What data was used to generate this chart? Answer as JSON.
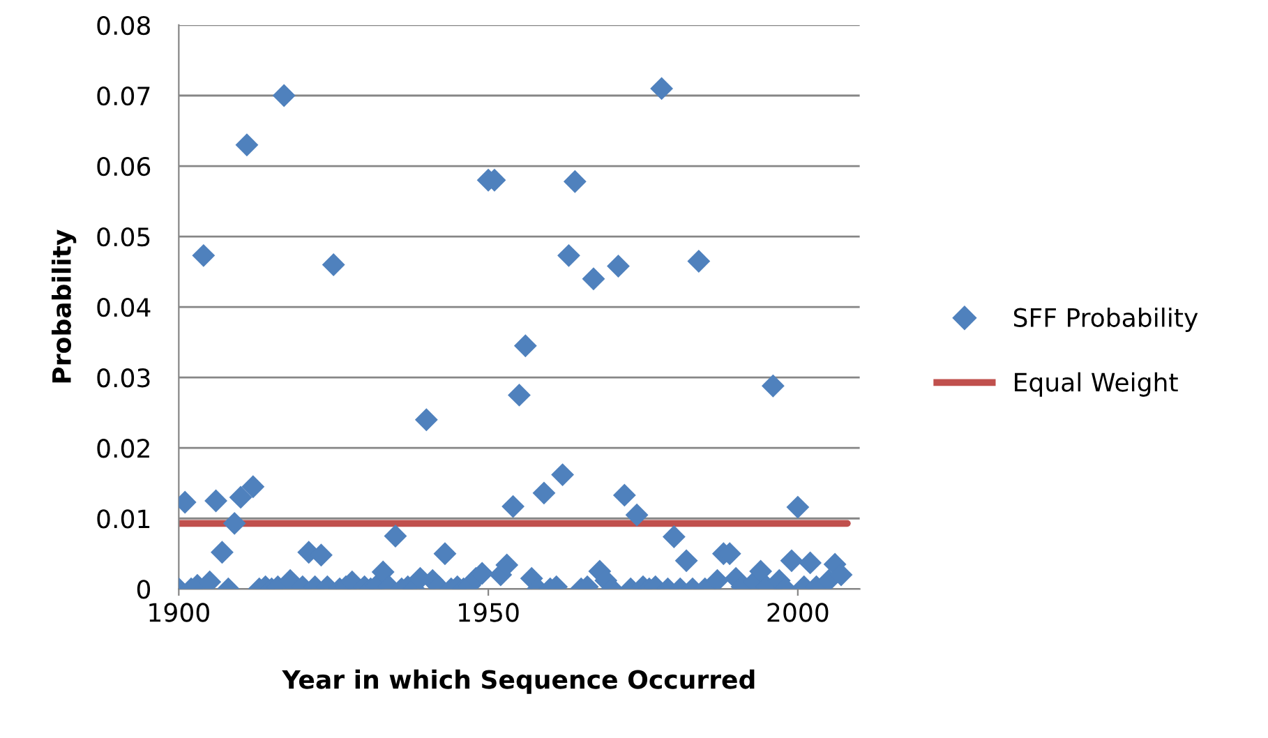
{
  "chart_data": {
    "type": "scatter",
    "xlabel": "Year in which Sequence Occurred",
    "ylabel": "Probability",
    "xlim": [
      1900,
      2010
    ],
    "xticks": [
      1900,
      1950,
      2000
    ],
    "ylim": [
      0,
      0.08
    ],
    "yticks": [
      0,
      0.01,
      0.02,
      0.03,
      0.04,
      0.05,
      0.06,
      0.07,
      0.08
    ],
    "grid": "y",
    "legend": "right",
    "series": [
      {
        "name": "SFF Probability",
        "marker": "diamond",
        "color": "#4f81bd",
        "x": [
          1900,
          1901,
          1902,
          1903,
          1904,
          1905,
          1906,
          1907,
          1908,
          1909,
          1910,
          1911,
          1912,
          1913,
          1914,
          1915,
          1916,
          1917,
          1918,
          1919,
          1920,
          1921,
          1922,
          1923,
          1924,
          1925,
          1926,
          1927,
          1928,
          1929,
          1930,
          1931,
          1932,
          1933,
          1934,
          1935,
          1936,
          1937,
          1938,
          1939,
          1940,
          1941,
          1942,
          1943,
          1944,
          1945,
          1946,
          1947,
          1948,
          1949,
          1950,
          1951,
          1952,
          1953,
          1954,
          1955,
          1956,
          1957,
          1958,
          1959,
          1960,
          1961,
          1962,
          1963,
          1964,
          1965,
          1966,
          1967,
          1968,
          1969,
          1970,
          1971,
          1972,
          1973,
          1974,
          1975,
          1976,
          1977,
          1978,
          1979,
          1980,
          1981,
          1982,
          1983,
          1984,
          1985,
          1986,
          1987,
          1988,
          1989,
          1990,
          1991,
          1992,
          1993,
          1994,
          1995,
          1996,
          1997,
          1998,
          1999,
          2000,
          2001,
          2002,
          2003,
          2004,
          2005,
          2006,
          2007
        ],
        "values": [
          0,
          0.0123,
          0,
          0.0005,
          0.0473,
          0.001,
          0.0125,
          0.0052,
          0,
          0.0093,
          0.013,
          0.063,
          0.0145,
          0,
          0.0003,
          0,
          0.0003,
          0.07,
          0.0012,
          null,
          0.0003,
          0.0052,
          0.0003,
          0.0048,
          0.0003,
          0.046,
          0,
          0.0003,
          0.001,
          null,
          0.0003,
          0,
          0.0005,
          0.0024,
          0.0003,
          0.0075,
          0,
          0.0003,
          0,
          0.0015,
          0.024,
          0.0012,
          0.0003,
          0.005,
          0,
          0.0003,
          0,
          0.0005,
          0.0015,
          0.0022,
          0.058,
          0.058,
          0.002,
          0.0034,
          0.0117,
          0.0275,
          0.0345,
          0.0015,
          0,
          0.0136,
          0,
          0.0003,
          0.0162,
          0.0473,
          0.0578,
          0,
          0.0003,
          0.044,
          0.0025,
          0.0012,
          0,
          0.0458,
          0.0133,
          0,
          0.0105,
          0.0003,
          0,
          0.0003,
          0.071,
          0,
          0.0074,
          0,
          0.004,
          0,
          0.0465,
          0,
          null,
          0.0012,
          0.005,
          0.005,
          0.0015,
          0.0003,
          null,
          0.001,
          0.0025,
          0.0003,
          0.0288,
          0.0012,
          0,
          0.004,
          0.0116,
          0.0003,
          0.0037,
          0.0003,
          null,
          0.0012,
          0.0035,
          0.002
        ]
      },
      {
        "name": "Equal Weight",
        "type": "line",
        "color": "#c0504d",
        "x": [
          1900,
          2008
        ],
        "values": [
          0.0093,
          0.0093
        ]
      }
    ]
  }
}
